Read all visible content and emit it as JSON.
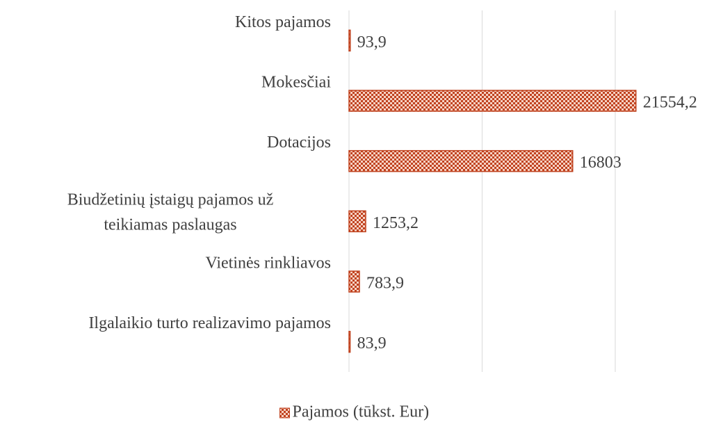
{
  "chart_data": {
    "type": "hbar",
    "categories": [
      "Kitos pajamos",
      "Mokesčiai",
      "Dotacijos",
      "Biudžetinių įstaigų pajamos už teikiamas paslaugas",
      "Vietinės rinkliavos",
      "Ilgalaikio turto realizavimo pajamos"
    ],
    "series": [
      {
        "name": "Pajamos (tūkst. Eur)",
        "color": "#c0421f",
        "values": [
          93.9,
          21554.2,
          16803,
          1253.2,
          783.9,
          83.9
        ],
        "value_labels": [
          "93,9",
          "21554,2",
          "16803",
          "1253,2",
          "783,9",
          "83,9"
        ]
      }
    ],
    "xlim": [
      0,
      27000
    ],
    "xticks": [
      0,
      10000,
      20000
    ],
    "grid": true,
    "legend": "bottom"
  }
}
